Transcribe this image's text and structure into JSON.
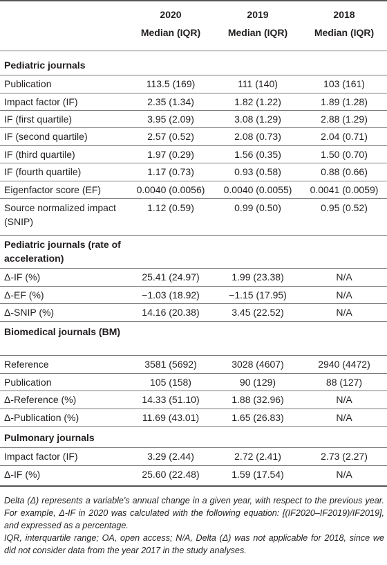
{
  "columns": [
    {
      "year": "2020",
      "stat": "Median (IQR)"
    },
    {
      "year": "2019",
      "stat": "Median (IQR)"
    },
    {
      "year": "2018",
      "stat": "Median (IQR)"
    }
  ],
  "sections": [
    {
      "title": "Pediatric journals",
      "rows": [
        {
          "label": "Publication",
          "values": [
            "113.5 (169)",
            "111 (140)",
            "103 (161)"
          ]
        },
        {
          "label": "Impact factor (IF)",
          "values": [
            "2.35 (1.34)",
            "1.82 (1.22)",
            "1.89 (1.28)"
          ]
        },
        {
          "label": "IF (first quartile)",
          "values": [
            "3.95 (2.09)",
            "3.08 (1.29)",
            "2.88 (1.29)"
          ]
        },
        {
          "label": "IF (second quartile)",
          "values": [
            "2.57 (0.52)",
            "2.08 (0.73)",
            "2.04 (0.71)"
          ]
        },
        {
          "label": "IF (third quartile)",
          "values": [
            "1.97 (0.29)",
            "1.56 (0.35)",
            "1.50 (0.70)"
          ]
        },
        {
          "label": "IF (fourth quartile)",
          "values": [
            "1.17 (0.73)",
            "0.93 (0.58)",
            "0.88 (0.66)"
          ]
        },
        {
          "label": "Eigenfactor score (EF)",
          "values": [
            "0.0040 (0.0056)",
            "0.0040 (0.0055)",
            "0.0041 (0.0059)"
          ]
        },
        {
          "label": "Source normalized impact (SNIP)",
          "values": [
            "1.12 (0.59)",
            "0.99 (0.50)",
            "0.95 (0.52)"
          ]
        }
      ]
    },
    {
      "title": "Pediatric journals (rate of acceleration)",
      "rows": [
        {
          "label": "Δ-IF (%)",
          "values": [
            "25.41 (24.97)",
            "1.99 (23.38)",
            "N/A"
          ]
        },
        {
          "label": "Δ-EF (%)",
          "values": [
            "−1.03 (18.92)",
            "−1.15 (17.95)",
            "N/A"
          ]
        },
        {
          "label": "Δ-SNIP (%)",
          "values": [
            "14.16 (20.38)",
            "3.45 (22.52)",
            "N/A"
          ]
        }
      ]
    },
    {
      "title": "Biomedical journals (BM)",
      "rows": [
        {
          "label": "Reference",
          "values": [
            "3581 (5692)",
            "3028 (4607)",
            "2940 (4472)"
          ]
        },
        {
          "label": "Publication",
          "values": [
            "105 (158)",
            "90 (129)",
            "88 (127)"
          ]
        },
        {
          "label": "Δ-Reference (%)",
          "values": [
            "14.33 (51.10)",
            "1.88 (32.96)",
            "N/A"
          ]
        },
        {
          "label": "Δ-Publication (%)",
          "values": [
            "11.69 (43.01)",
            "1.65 (26.83)",
            "N/A"
          ]
        }
      ]
    },
    {
      "title": "Pulmonary journals",
      "rows": [
        {
          "label": "Impact factor (IF)",
          "values": [
            "3.29 (2.44)",
            "2.72 (2.41)",
            "2.73 (2.27)"
          ]
        },
        {
          "label": "Δ-IF (%)",
          "values": [
            "25.60 (22.48)",
            "1.59 (17.54)",
            "N/A"
          ]
        }
      ]
    }
  ],
  "footnotes": [
    "Delta (Δ) represents a variable's annual change in a given year, with respect to the previous year. For example, Δ-IF in 2020 was calculated with the following equation: [(IF2020–IF2019)/IF2019], and expressed as a percentage.",
    "IQR, interquartile range; OA, open access; N/A, Delta (Δ) was not applicable for 2018, since we did not consider data from the year 2017 in the study analyses."
  ]
}
